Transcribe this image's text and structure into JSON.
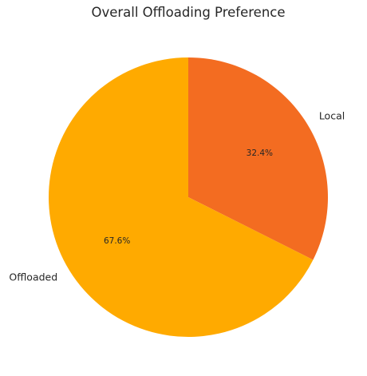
{
  "chart_data": {
    "type": "pie",
    "title": "Overall Offloading Preference",
    "start_angle_deg": 90,
    "direction": "clockwise",
    "slices": [
      {
        "label": "Local",
        "value": 32.4,
        "pct_label": "32.4%",
        "color": "#f36c21"
      },
      {
        "label": "Offloaded",
        "value": 67.6,
        "pct_label": "67.6%",
        "color": "#ffaa00"
      }
    ]
  }
}
